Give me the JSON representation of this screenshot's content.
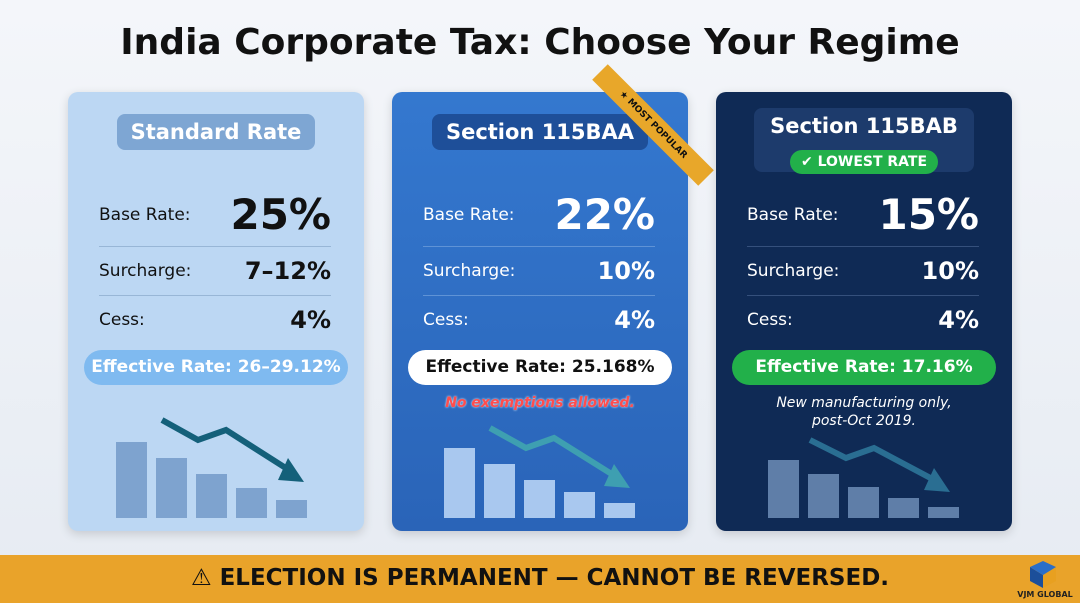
{
  "header": {
    "title": "India Corporate Tax: Choose Your Regime"
  },
  "cards": [
    {
      "name": "Standard Rate",
      "rows": [
        {
          "label": "Base Rate:",
          "value": "25%"
        },
        {
          "label": "Surcharge:",
          "value": "7–12%"
        },
        {
          "label": "Cess:",
          "value": "4%"
        }
      ],
      "effective": {
        "label": "Effective Rate:",
        "value": "26–29.12%"
      }
    },
    {
      "name": "Section 115BAA",
      "ribbon": "MOST POPULAR",
      "rows": [
        {
          "label": "Base Rate:",
          "value": "22%"
        },
        {
          "label": "Surcharge:",
          "value": "10%"
        },
        {
          "label": "Cess:",
          "value": "4%"
        }
      ],
      "effective": {
        "label": "Effective Rate:",
        "value": "25.168%"
      },
      "note": [
        "No exemptions allowed."
      ]
    },
    {
      "name": "Section 115BAB",
      "badge": "LOWEST RATE",
      "rows": [
        {
          "label": "Base Rate:",
          "value": "15%"
        },
        {
          "label": "Surcharge:",
          "value": "10%"
        },
        {
          "label": "Cess:",
          "value": "4%"
        }
      ],
      "effective": {
        "label": "Effective Rate:",
        "value": "17.16%"
      },
      "note": [
        "New manufacturing only,",
        "post-Oct 2019."
      ]
    }
  ],
  "footer": {
    "warning": "ELECTION IS PERMANENT — CANNOT BE REVERSED.",
    "logo": "VJM GLOBAL"
  }
}
